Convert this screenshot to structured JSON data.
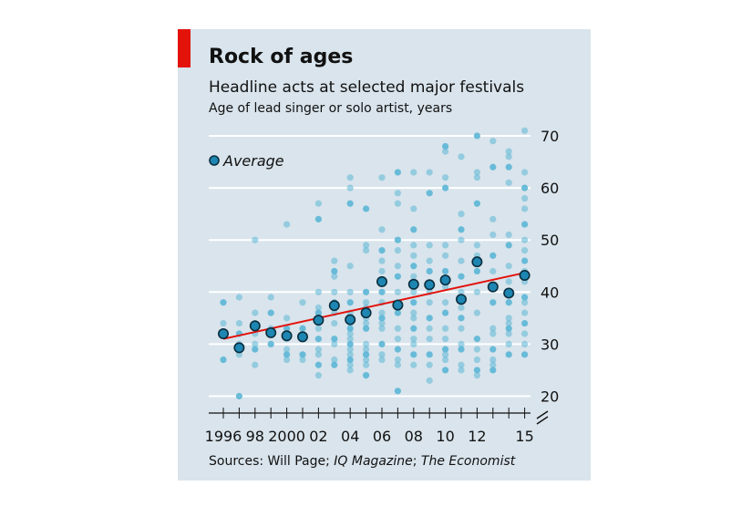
{
  "title": "Rock of ages",
  "subtitle": "Headline acts at selected major festivals",
  "unit_label": "Age of lead singer or solo artist, years",
  "source": {
    "prefix": "Sources: Will Page; ",
    "italic1": "IQ Magazine",
    "sep": "; ",
    "italic2": "The Economist"
  },
  "colors": {
    "panel": "#d9e4ec",
    "accent": "#e3120b",
    "dot": "#5bb6d6",
    "average_fill": "#1e86b2",
    "average_stroke": "#0b2e3e",
    "trend": "#e3120b",
    "grid": "#ffffff"
  },
  "chart_data": {
    "type": "scatter",
    "title": "Rock of ages",
    "ylabel": "Age of lead singer or solo artist, years",
    "ylim": [
      20,
      70
    ],
    "yticks": [
      20,
      30,
      40,
      50,
      60,
      70
    ],
    "xlim": [
      1996,
      2015
    ],
    "xtick_labels": [
      {
        "x": 1996,
        "label": "1996"
      },
      {
        "x": 1998,
        "label": "98"
      },
      {
        "x": 2000,
        "label": "2000"
      },
      {
        "x": 2002,
        "label": "02"
      },
      {
        "x": 2004,
        "label": "04"
      },
      {
        "x": 2006,
        "label": "06"
      },
      {
        "x": 2008,
        "label": "08"
      },
      {
        "x": 2010,
        "label": "10"
      },
      {
        "x": 2012,
        "label": "12"
      },
      {
        "x": 2015,
        "label": "15"
      }
    ],
    "axis_break": true,
    "grid": true,
    "legend": {
      "label": "Average",
      "placement": "top-left"
    },
    "series": [
      {
        "kind": "individual",
        "points": [
          [
            1996,
            38
          ],
          [
            1996,
            34
          ],
          [
            1996,
            32
          ],
          [
            1996,
            27
          ],
          [
            1997,
            39
          ],
          [
            1997,
            34
          ],
          [
            1997,
            32
          ],
          [
            1997,
            30
          ],
          [
            1997,
            28
          ],
          [
            1997,
            20
          ],
          [
            1998,
            50
          ],
          [
            1998,
            36
          ],
          [
            1998,
            34
          ],
          [
            1998,
            32
          ],
          [
            1998,
            30
          ],
          [
            1998,
            29
          ],
          [
            1998,
            26
          ],
          [
            1999,
            39
          ],
          [
            1999,
            36
          ],
          [
            1999,
            33
          ],
          [
            1999,
            32
          ],
          [
            1999,
            30
          ],
          [
            2000,
            53
          ],
          [
            2000,
            35
          ],
          [
            2000,
            33
          ],
          [
            2000,
            31
          ],
          [
            2000,
            29
          ],
          [
            2000,
            28
          ],
          [
            2000,
            27
          ],
          [
            2001,
            38
          ],
          [
            2001,
            33
          ],
          [
            2001,
            32
          ],
          [
            2001,
            31
          ],
          [
            2001,
            28
          ],
          [
            2001,
            27
          ],
          [
            2002,
            57
          ],
          [
            2002,
            54
          ],
          [
            2002,
            40
          ],
          [
            2002,
            37
          ],
          [
            2002,
            36
          ],
          [
            2002,
            35
          ],
          [
            2002,
            33
          ],
          [
            2002,
            31
          ],
          [
            2002,
            29
          ],
          [
            2002,
            28
          ],
          [
            2002,
            26
          ],
          [
            2002,
            24
          ],
          [
            2003,
            46
          ],
          [
            2003,
            44
          ],
          [
            2003,
            43
          ],
          [
            2003,
            40
          ],
          [
            2003,
            38
          ],
          [
            2003,
            36
          ],
          [
            2003,
            34
          ],
          [
            2003,
            31
          ],
          [
            2003,
            30
          ],
          [
            2003,
            27
          ],
          [
            2003,
            26
          ],
          [
            2004,
            62
          ],
          [
            2004,
            60
          ],
          [
            2004,
            57
          ],
          [
            2004,
            45
          ],
          [
            2004,
            40
          ],
          [
            2004,
            38
          ],
          [
            2004,
            36
          ],
          [
            2004,
            34
          ],
          [
            2004,
            33
          ],
          [
            2004,
            32
          ],
          [
            2004,
            31
          ],
          [
            2004,
            30
          ],
          [
            2004,
            29
          ],
          [
            2004,
            28
          ],
          [
            2004,
            27
          ],
          [
            2004,
            26
          ],
          [
            2004,
            25
          ],
          [
            2005,
            56
          ],
          [
            2005,
            49
          ],
          [
            2005,
            48
          ],
          [
            2005,
            40
          ],
          [
            2005,
            38
          ],
          [
            2005,
            37
          ],
          [
            2005,
            36
          ],
          [
            2005,
            35
          ],
          [
            2005,
            34
          ],
          [
            2005,
            33
          ],
          [
            2005,
            30
          ],
          [
            2005,
            29
          ],
          [
            2005,
            28
          ],
          [
            2005,
            27
          ],
          [
            2005,
            26
          ],
          [
            2005,
            24
          ],
          [
            2006,
            62
          ],
          [
            2006,
            52
          ],
          [
            2006,
            48
          ],
          [
            2006,
            46
          ],
          [
            2006,
            44
          ],
          [
            2006,
            40
          ],
          [
            2006,
            38
          ],
          [
            2006,
            36
          ],
          [
            2006,
            35
          ],
          [
            2006,
            34
          ],
          [
            2006,
            33
          ],
          [
            2006,
            30
          ],
          [
            2006,
            28
          ],
          [
            2006,
            27
          ],
          [
            2007,
            63
          ],
          [
            2007,
            59
          ],
          [
            2007,
            57
          ],
          [
            2007,
            50
          ],
          [
            2007,
            48
          ],
          [
            2007,
            45
          ],
          [
            2007,
            43
          ],
          [
            2007,
            40
          ],
          [
            2007,
            38
          ],
          [
            2007,
            36
          ],
          [
            2007,
            33
          ],
          [
            2007,
            31
          ],
          [
            2007,
            29
          ],
          [
            2007,
            27
          ],
          [
            2007,
            26
          ],
          [
            2007,
            21
          ],
          [
            2008,
            63
          ],
          [
            2008,
            56
          ],
          [
            2008,
            52
          ],
          [
            2008,
            49
          ],
          [
            2008,
            47
          ],
          [
            2008,
            45
          ],
          [
            2008,
            43
          ],
          [
            2008,
            40
          ],
          [
            2008,
            38
          ],
          [
            2008,
            36
          ],
          [
            2008,
            35
          ],
          [
            2008,
            33
          ],
          [
            2008,
            31
          ],
          [
            2008,
            30
          ],
          [
            2008,
            28
          ],
          [
            2008,
            26
          ],
          [
            2009,
            63
          ],
          [
            2009,
            59
          ],
          [
            2009,
            49
          ],
          [
            2009,
            46
          ],
          [
            2009,
            44
          ],
          [
            2009,
            40
          ],
          [
            2009,
            38
          ],
          [
            2009,
            35
          ],
          [
            2009,
            33
          ],
          [
            2009,
            31
          ],
          [
            2009,
            28
          ],
          [
            2009,
            26
          ],
          [
            2009,
            23
          ],
          [
            2010,
            68
          ],
          [
            2010,
            67
          ],
          [
            2010,
            62
          ],
          [
            2010,
            60
          ],
          [
            2010,
            49
          ],
          [
            2010,
            47
          ],
          [
            2010,
            44
          ],
          [
            2010,
            41
          ],
          [
            2010,
            38
          ],
          [
            2010,
            36
          ],
          [
            2010,
            33
          ],
          [
            2010,
            31
          ],
          [
            2010,
            29
          ],
          [
            2010,
            28
          ],
          [
            2010,
            27
          ],
          [
            2010,
            25
          ],
          [
            2011,
            66
          ],
          [
            2011,
            55
          ],
          [
            2011,
            52
          ],
          [
            2011,
            50
          ],
          [
            2011,
            46
          ],
          [
            2011,
            43
          ],
          [
            2011,
            40
          ],
          [
            2011,
            37
          ],
          [
            2011,
            35
          ],
          [
            2011,
            33
          ],
          [
            2011,
            30
          ],
          [
            2011,
            29
          ],
          [
            2011,
            26
          ],
          [
            2011,
            25
          ],
          [
            2012,
            70
          ],
          [
            2012,
            63
          ],
          [
            2012,
            62
          ],
          [
            2012,
            57
          ],
          [
            2012,
            49
          ],
          [
            2012,
            47
          ],
          [
            2012,
            44
          ],
          [
            2012,
            40
          ],
          [
            2012,
            36
          ],
          [
            2012,
            31
          ],
          [
            2012,
            29
          ],
          [
            2012,
            27
          ],
          [
            2012,
            25
          ],
          [
            2012,
            24
          ],
          [
            2013,
            69
          ],
          [
            2013,
            64
          ],
          [
            2013,
            54
          ],
          [
            2013,
            51
          ],
          [
            2013,
            47
          ],
          [
            2013,
            44
          ],
          [
            2013,
            41
          ],
          [
            2013,
            38
          ],
          [
            2013,
            33
          ],
          [
            2013,
            32
          ],
          [
            2013,
            29
          ],
          [
            2013,
            27
          ],
          [
            2013,
            26
          ],
          [
            2013,
            25
          ],
          [
            2014,
            67
          ],
          [
            2014,
            66
          ],
          [
            2014,
            64
          ],
          [
            2014,
            61
          ],
          [
            2014,
            51
          ],
          [
            2014,
            49
          ],
          [
            2014,
            45
          ],
          [
            2014,
            42
          ],
          [
            2014,
            38
          ],
          [
            2014,
            35
          ],
          [
            2014,
            34
          ],
          [
            2014,
            33
          ],
          [
            2014,
            32
          ],
          [
            2014,
            30
          ],
          [
            2014,
            28
          ],
          [
            2015,
            71
          ],
          [
            2015,
            63
          ],
          [
            2015,
            60
          ],
          [
            2015,
            58
          ],
          [
            2015,
            56
          ],
          [
            2015,
            53
          ],
          [
            2015,
            50
          ],
          [
            2015,
            48
          ],
          [
            2015,
            46
          ],
          [
            2015,
            44
          ],
          [
            2015,
            42
          ],
          [
            2015,
            39
          ],
          [
            2015,
            38
          ],
          [
            2015,
            36
          ],
          [
            2015,
            34
          ],
          [
            2015,
            32
          ],
          [
            2015,
            30
          ],
          [
            2015,
            28
          ]
        ]
      },
      {
        "name": "Average",
        "kind": "average",
        "points": [
          [
            1996,
            32
          ],
          [
            1997,
            29.3
          ],
          [
            1998,
            33.5
          ],
          [
            1999,
            32.2
          ],
          [
            2000,
            31.6
          ],
          [
            2001,
            31.4
          ],
          [
            2002,
            34.6
          ],
          [
            2003,
            37.4
          ],
          [
            2004,
            34.7
          ],
          [
            2005,
            36
          ],
          [
            2006,
            42
          ],
          [
            2007,
            37.5
          ],
          [
            2008,
            41.5
          ],
          [
            2009,
            41.4
          ],
          [
            2010,
            42.3
          ],
          [
            2011,
            38.6
          ],
          [
            2012,
            45.8
          ],
          [
            2013,
            41
          ],
          [
            2014,
            39.8
          ],
          [
            2015,
            43.2
          ]
        ]
      },
      {
        "kind": "trend",
        "points": [
          [
            1996,
            31
          ],
          [
            2015,
            43.7
          ]
        ]
      }
    ]
  }
}
